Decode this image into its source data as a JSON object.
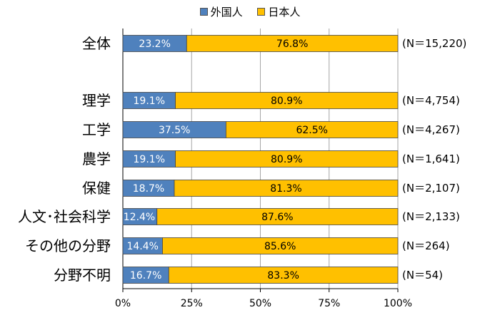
{
  "chart_data": {
    "type": "bar",
    "stacked": true,
    "orientation": "horizontal",
    "title": "",
    "categories": [
      "全体",
      "",
      "理学",
      "工学",
      "農学",
      "保健",
      "人文･社会科学",
      "その他の分野",
      "分野不明"
    ],
    "sample_sizes": [
      "(N＝15,220)",
      "",
      "(N＝4,754)",
      "(N＝4,267)",
      "(N＝1,641)",
      "(N＝2,107)",
      "(N＝2,133)",
      "(N＝264)",
      "(N＝54)"
    ],
    "series": [
      {
        "name": "外国人",
        "color": "#4f81bd",
        "values": [
          23.2,
          null,
          19.1,
          37.5,
          19.1,
          18.7,
          12.4,
          14.4,
          16.7
        ],
        "labels": [
          "23.2%",
          "",
          "19.1%",
          "37.5%",
          "19.1%",
          "18.7%",
          "12.4%",
          "14.4%",
          "16.7%"
        ]
      },
      {
        "name": "日本人",
        "color": "#ffc000",
        "values": [
          76.8,
          null,
          80.9,
          62.5,
          80.9,
          81.3,
          87.6,
          85.6,
          83.3
        ],
        "labels": [
          "76.8%",
          "",
          "80.9%",
          "62.5%",
          "80.9%",
          "81.3%",
          "87.6%",
          "85.6%",
          "83.3%"
        ]
      }
    ],
    "xlim": [
      0,
      100
    ],
    "xticks": [
      0,
      25,
      50,
      75,
      100
    ],
    "xtick_labels": [
      "0%",
      "25%",
      "50%",
      "75%",
      "100%"
    ],
    "grid": true,
    "legend_position": "top"
  }
}
